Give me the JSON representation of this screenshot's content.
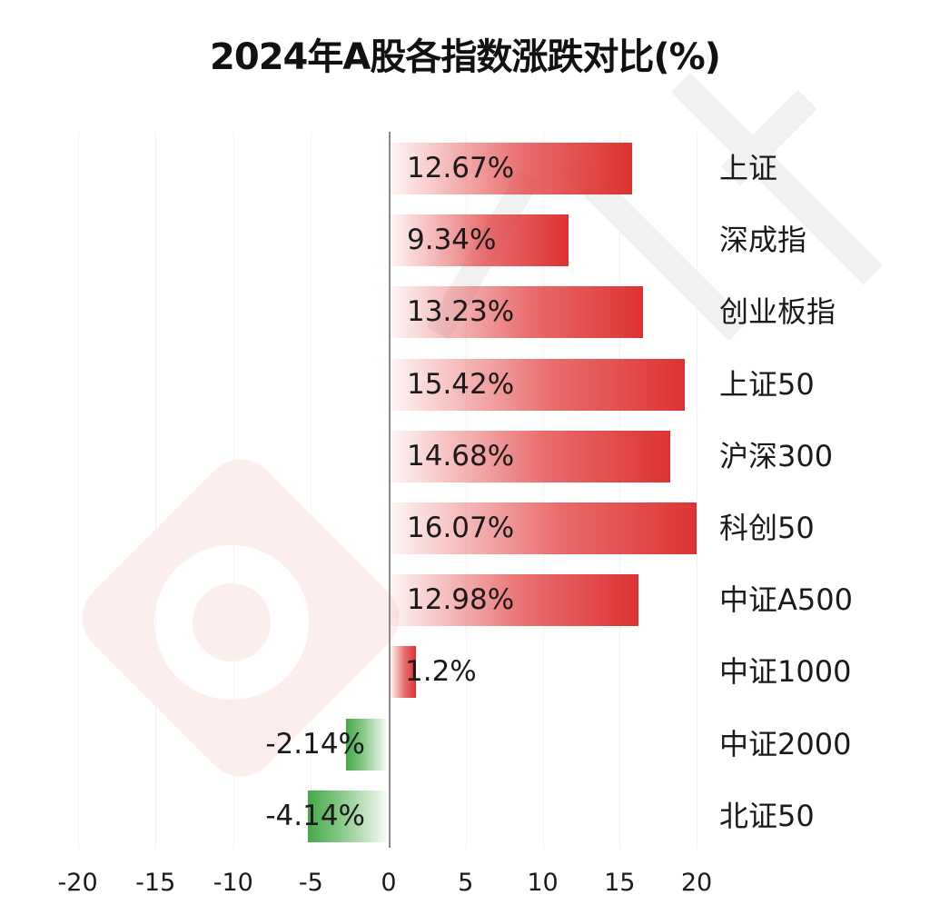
{
  "chart_data": {
    "type": "bar",
    "orientation": "horizontal",
    "title": "2024年A股各指数涨跌对比(%)",
    "xlabel": "",
    "ylabel": "",
    "xlim": [
      -20,
      20
    ],
    "x_ticks": [
      "-20",
      "-15",
      "-10",
      "-5",
      "0",
      "5",
      "10",
      "15",
      "20"
    ],
    "grid": true,
    "legend": null,
    "categories": [
      "上证",
      "深成指",
      "创业板指",
      "上证50",
      "沪深300",
      "科创50",
      "中证A500",
      "中证1000",
      "中证2000",
      "北证50"
    ],
    "values": [
      12.67,
      9.34,
      13.23,
      15.42,
      14.68,
      16.07,
      12.98,
      1.2,
      -2.14,
      -4.14
    ],
    "value_labels": [
      "12.67%",
      "9.34%",
      "13.23%",
      "15.42%",
      "14.68%",
      "16.07%",
      "12.98%",
      "1.2%",
      "-2.14%",
      "-4.14%"
    ],
    "colors": {
      "positive": "#dd3232",
      "negative": "#46a84a"
    }
  }
}
